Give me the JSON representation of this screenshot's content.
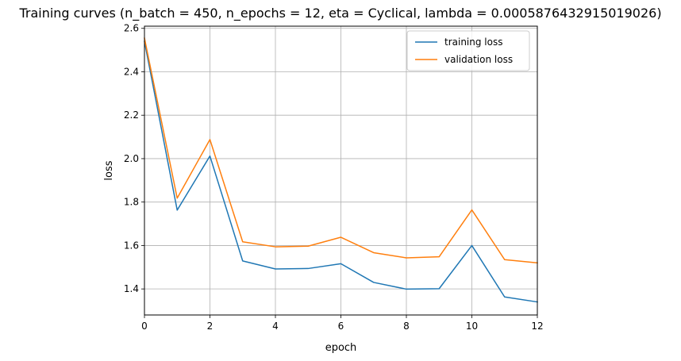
{
  "chart_data": {
    "type": "line",
    "title": "Training curves (n_batch = 450, n_epochs = 12, eta = Cyclical, lambda = 0.0005876432915019026)",
    "xlabel": "epoch",
    "ylabel": "loss",
    "xlim": [
      0,
      12
    ],
    "ylim": [
      1.28,
      2.61
    ],
    "xticks": [
      0,
      2,
      4,
      6,
      8,
      10,
      12
    ],
    "xtick_labels": [
      "0",
      "2",
      "4",
      "6",
      "8",
      "10",
      "12"
    ],
    "yticks": [
      1.4,
      1.6,
      1.8,
      2.0,
      2.2,
      2.4,
      2.6
    ],
    "ytick_labels": [
      "1.4",
      "1.6",
      "1.8",
      "2.0",
      "2.2",
      "2.4",
      "2.6"
    ],
    "grid": true,
    "legend_position": "top-right",
    "x": [
      0,
      1,
      2,
      3,
      4,
      5,
      6,
      7,
      8,
      9,
      10,
      11,
      12
    ],
    "series": [
      {
        "name": "training loss",
        "color": "#1f77b4",
        "values": [
          2.54,
          1.763,
          2.012,
          1.529,
          1.492,
          1.494,
          1.516,
          1.43,
          1.399,
          1.401,
          1.6,
          1.363,
          1.34
        ]
      },
      {
        "name": "validation loss",
        "color": "#ff7f0e",
        "values": [
          2.555,
          1.818,
          2.088,
          1.617,
          1.594,
          1.597,
          1.638,
          1.567,
          1.543,
          1.548,
          1.764,
          1.535,
          1.52
        ]
      }
    ]
  }
}
